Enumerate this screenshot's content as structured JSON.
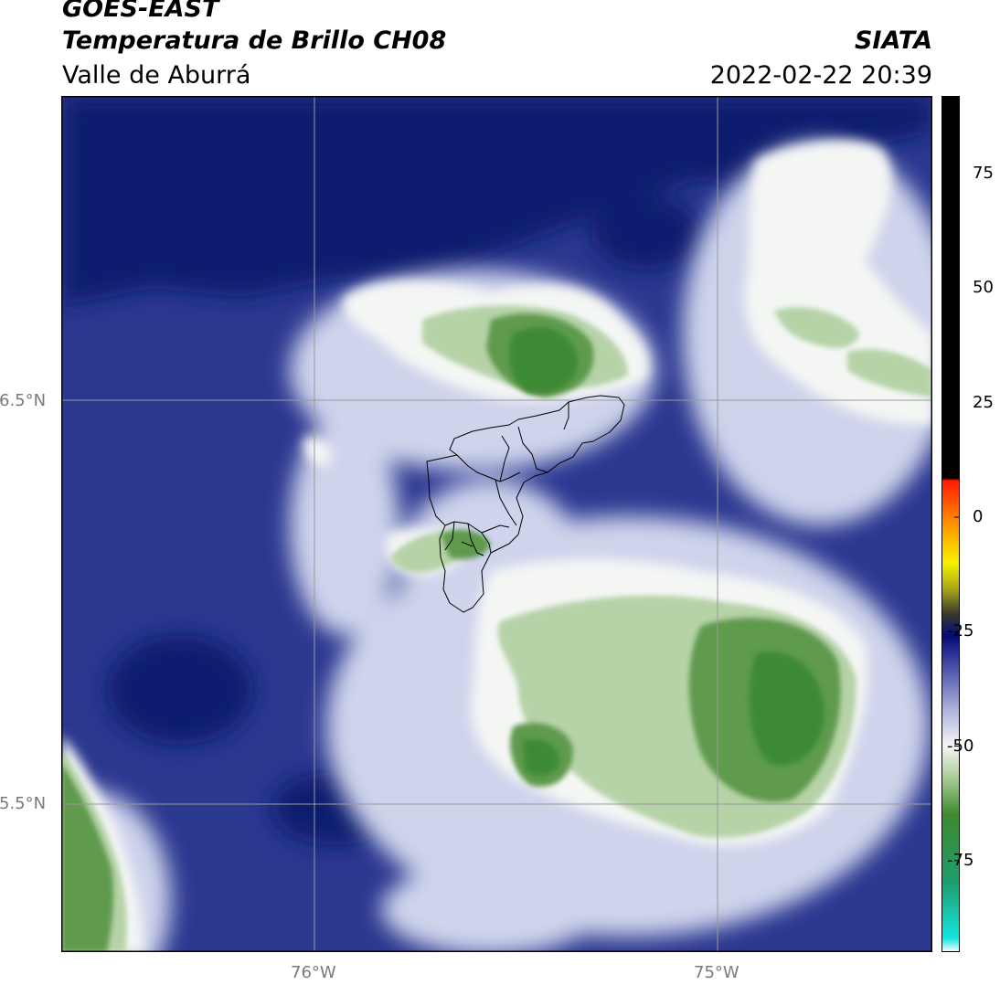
{
  "header": {
    "satellite": "GOES-EAST",
    "product": "Temperatura de Brillo CH08",
    "region": "Valle de Aburrá",
    "agency": "SIATA",
    "datetime": "2022-02-22 20:39"
  },
  "map": {
    "lat_labels": [
      "6.5°N",
      "5.5°N"
    ],
    "lon_labels": [
      "76°W",
      "75°W"
    ],
    "colors": {
      "background": "#2b3890",
      "dark": "#0c1a6e",
      "light": "#cfd4ec",
      "white": "#f4f6f4",
      "green_light": "#b6d3a8",
      "green": "#5f9a4d",
      "green_dark": "#3e8a35",
      "grid": "#9a9a9a",
      "boundary": "#000000"
    }
  },
  "colorbar": {
    "tick_labels": [
      "75",
      "50",
      "25",
      "0",
      "-25",
      "-50",
      "-75"
    ],
    "tick_values": [
      75,
      50,
      25,
      0,
      -25,
      -50,
      -75
    ],
    "range": [
      -95,
      92
    ],
    "stops": [
      {
        "value": -95,
        "color": "#ffffff"
      },
      {
        "value": -92,
        "color": "#15e6e0"
      },
      {
        "value": -80,
        "color": "#1d9e70"
      },
      {
        "value": -65,
        "color": "#3d8a2c"
      },
      {
        "value": -57,
        "color": "#a9cc96"
      },
      {
        "value": -50,
        "color": "#f6f6f6"
      },
      {
        "value": -42,
        "color": "#aeb2dc"
      },
      {
        "value": -32,
        "color": "#4149a3"
      },
      {
        "value": -26,
        "color": "#040a7a"
      },
      {
        "value": -21,
        "color": "#3b3a2a"
      },
      {
        "value": -16,
        "color": "#a4a01b"
      },
      {
        "value": -10,
        "color": "#f7f200"
      },
      {
        "value": -2,
        "color": "#ff9a00"
      },
      {
        "value": 8,
        "color": "#ff1a00"
      },
      {
        "value": 8.5,
        "color": "#000000"
      },
      {
        "value": 92,
        "color": "#000000"
      }
    ]
  }
}
